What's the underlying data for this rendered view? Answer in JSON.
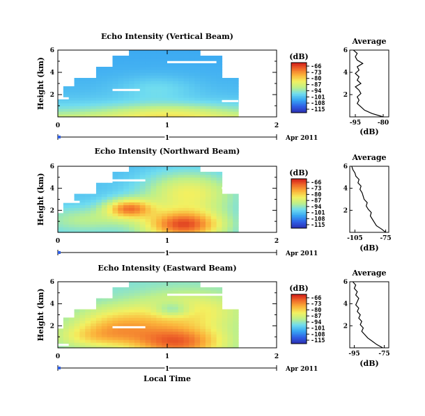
{
  "colors": {
    "colormap": [
      "#2b2fb0",
      "#2f5fe6",
      "#38a6f2",
      "#6fdcf0",
      "#bdf08a",
      "#f3f060",
      "#fbb23a",
      "#f06a2a",
      "#d11a1a"
    ]
  },
  "shared": {
    "date_label": "Apr 2011",
    "xlabel": "Local Time",
    "ylabel": "Height (km)",
    "avg_title": "Average",
    "avg_xlabel": "(dB)",
    "cb_unit": "(dB)",
    "colorbar_ticks": [
      "-66",
      "-73",
      "-80",
      "-87",
      "-94",
      "-101",
      "-108",
      "-115"
    ]
  },
  "chart_data": [
    {
      "type": "heatmap",
      "title": "Echo Intensity (Vertical Beam)",
      "x_ticks": [
        "0",
        "1",
        "2"
      ],
      "y_ticks": [
        "6",
        "4",
        "2"
      ],
      "xlim": [
        0,
        2
      ],
      "ylim": [
        0,
        6
      ],
      "colorbar": {
        "unit": "(dB)",
        "range": [
          -115,
          -66
        ]
      },
      "average_profile": {
        "xlabel": "(dB)",
        "x_ticks": [
          "-95",
          "-80"
        ],
        "xlim": [
          -98,
          -77
        ],
        "height_km": [
          0.0,
          0.3,
          0.6,
          0.9,
          1.2,
          1.5,
          1.8,
          2.1,
          2.4,
          2.7,
          3.0,
          3.3,
          3.6,
          3.9,
          4.2,
          4.5,
          4.8,
          5.1,
          5.4,
          5.7,
          6.0
        ],
        "values_db": [
          -80,
          -86,
          -90,
          -92,
          -94,
          -93,
          -94,
          -92,
          -93,
          -95,
          -92,
          -94,
          -93,
          -95,
          -93,
          -94,
          -91,
          -94,
          -95,
          -94,
          -96
        ]
      }
    },
    {
      "type": "heatmap",
      "title": "Echo Intensity (Northward Beam)",
      "x_ticks": [
        "0",
        "1",
        "2"
      ],
      "y_ticks": [
        "6",
        "4",
        "2"
      ],
      "xlim": [
        0,
        2
      ],
      "ylim": [
        0,
        6
      ],
      "colorbar": {
        "unit": "(dB)",
        "range": [
          -115,
          -66
        ]
      },
      "average_profile": {
        "xlabel": "(dB)",
        "x_ticks": [
          "-105",
          "-75"
        ],
        "xlim": [
          -110,
          -72
        ],
        "height_km": [
          0.0,
          0.3,
          0.6,
          0.9,
          1.2,
          1.5,
          1.8,
          2.1,
          2.4,
          2.7,
          3.0,
          3.3,
          3.6,
          3.9,
          4.2,
          4.5,
          4.8,
          5.1,
          5.4,
          5.7,
          6.0
        ],
        "values_db": [
          -75,
          -79,
          -84,
          -86,
          -88,
          -90,
          -89,
          -92,
          -94,
          -93,
          -96,
          -97,
          -98,
          -100,
          -99,
          -102,
          -101,
          -104,
          -105,
          -107,
          -108
        ]
      }
    },
    {
      "type": "heatmap",
      "title": "Echo Intensity (Eastward Beam)",
      "x_ticks": [
        "0",
        "1",
        "2"
      ],
      "y_ticks": [
        "6",
        "4",
        "2"
      ],
      "xlim": [
        0,
        2
      ],
      "ylim": [
        0,
        6
      ],
      "colorbar": {
        "unit": "(dB)",
        "range": [
          -115,
          -66
        ]
      },
      "average_profile": {
        "xlabel": "(dB)",
        "x_ticks": [
          "-95",
          "-75"
        ],
        "xlim": [
          -98,
          -72
        ],
        "height_km": [
          0.0,
          0.3,
          0.6,
          0.9,
          1.2,
          1.5,
          1.8,
          2.1,
          2.4,
          2.7,
          3.0,
          3.3,
          3.6,
          3.9,
          4.2,
          4.5,
          4.8,
          5.1,
          5.4,
          5.7,
          6.0
        ],
        "values_db": [
          -76,
          -80,
          -83,
          -86,
          -88,
          -90,
          -89,
          -91,
          -90,
          -92,
          -91,
          -93,
          -92,
          -94,
          -93,
          -92,
          -94,
          -93,
          -95,
          -94,
          -96
        ]
      }
    }
  ]
}
